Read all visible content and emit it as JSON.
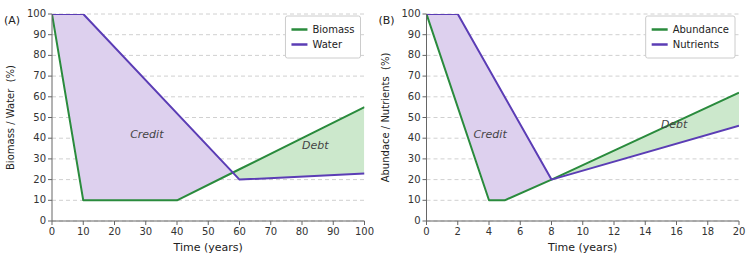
{
  "chart_data": [
    {
      "type": "line",
      "title": "(A)",
      "x_label": "Time (years)",
      "y_label": "Biomass / Water  (%)",
      "series": [
        {
          "name": "Biomass",
          "color": "#2a8b3d",
          "x": [
            0,
            10,
            40,
            60,
            100
          ],
          "values": [
            100,
            10,
            10,
            25,
            55
          ]
        },
        {
          "name": "Water",
          "color": "#5b3db5",
          "x": [
            0,
            10,
            60,
            100
          ],
          "values": [
            100,
            100,
            20,
            23
          ]
        }
      ],
      "annotations": [
        {
          "text": "Credit",
          "x": 25,
          "y": 40,
          "color": "#ddd0ee"
        },
        {
          "text": "Debt",
          "x": 80,
          "y": 35,
          "color": "#cce8cc"
        }
      ],
      "xlim": [
        0,
        100
      ],
      "ylim": [
        0,
        100
      ],
      "xticks": [
        0,
        10,
        20,
        30,
        40,
        50,
        60,
        70,
        80,
        90,
        100
      ],
      "yticks": [
        0,
        10,
        20,
        30,
        40,
        50,
        60,
        70,
        80,
        90,
        100
      ],
      "grid": "y",
      "legend": "upper right"
    },
    {
      "type": "line",
      "title": "(B)",
      "x_label": "Time (years)",
      "y_label": "Abundace / Nutrients  (%)",
      "series": [
        {
          "name": "Abundance",
          "color": "#2a8b3d",
          "x": [
            0,
            4,
            5,
            8,
            20
          ],
          "values": [
            100,
            10,
            10,
            20,
            62
          ]
        },
        {
          "name": "Nutrients",
          "color": "#5b3db5",
          "x": [
            0,
            2,
            8,
            20
          ],
          "values": [
            100,
            100,
            20,
            46
          ]
        }
      ],
      "annotations": [
        {
          "text": "Credit",
          "x": 3.0,
          "y": 40,
          "color": "#ddd0ee"
        },
        {
          "text": "Debt",
          "x": 15.0,
          "y": 45,
          "color": "#cce8cc"
        }
      ],
      "xlim": [
        0,
        20
      ],
      "ylim": [
        0,
        100
      ],
      "xticks": [
        0,
        2,
        4,
        6,
        8,
        10,
        12,
        14,
        16,
        18,
        20
      ],
      "yticks": [
        0,
        10,
        20,
        30,
        40,
        50,
        60,
        70,
        80,
        90,
        100
      ],
      "grid": "y",
      "legend": "upper right"
    }
  ]
}
